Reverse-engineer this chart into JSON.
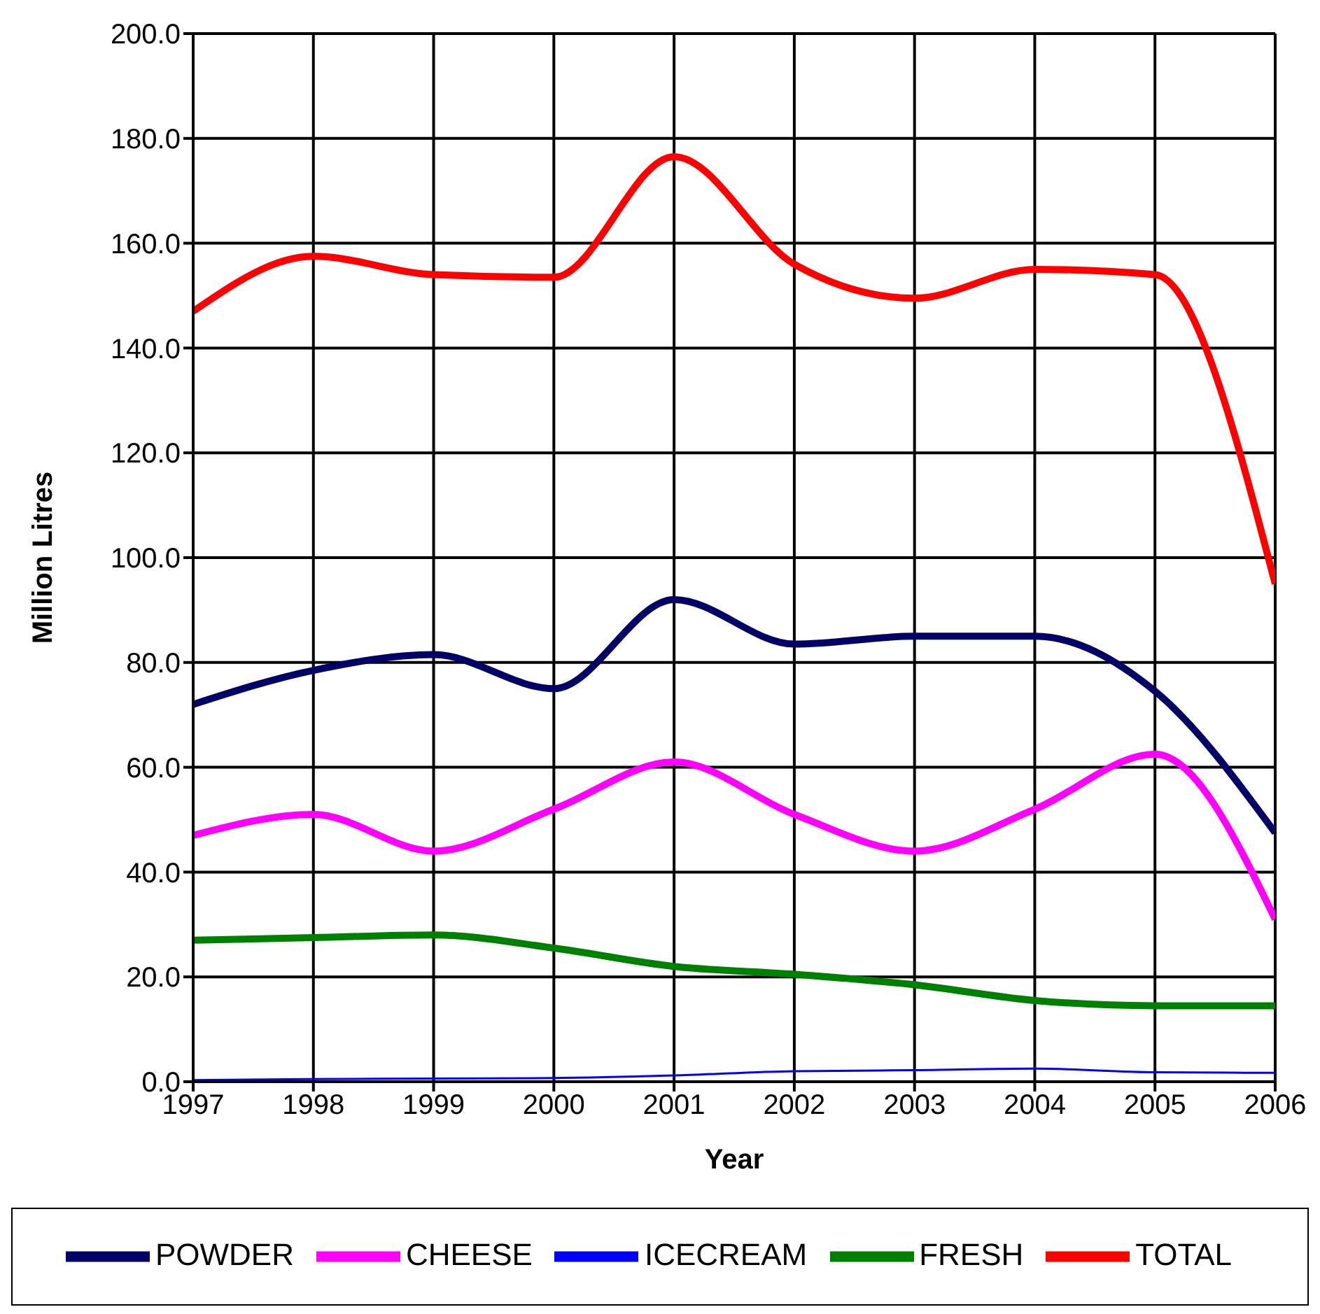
{
  "chart_data": {
    "type": "line",
    "xlabel": "Year",
    "ylabel": "Million Litres",
    "categories": [
      "1997",
      "1998",
      "1999",
      "2000",
      "2001",
      "2002",
      "2003",
      "2004",
      "2005",
      "2006"
    ],
    "series": [
      {
        "name": "POWDER",
        "color": "#000066",
        "values": [
          72,
          78.5,
          81.5,
          75,
          92,
          83.5,
          85,
          85,
          74.5,
          47.5
        ]
      },
      {
        "name": "CHEESE",
        "color": "#ff00ff",
        "values": [
          47,
          51,
          44,
          52,
          61,
          51,
          44,
          52,
          62.5,
          31
        ]
      },
      {
        "name": "ICECREAM",
        "color": "#0000ff",
        "values": [
          0.3,
          0.5,
          0.6,
          0.7,
          1.2,
          2,
          2.2,
          2.5,
          1.8,
          1.7
        ]
      },
      {
        "name": "FRESH",
        "color": "#008000",
        "values": [
          27,
          27.5,
          28,
          25.5,
          22,
          20.5,
          18.5,
          15.5,
          14.5,
          14.5
        ]
      },
      {
        "name": "TOTAL",
        "color": "#ff0000",
        "values": [
          147,
          157.5,
          154,
          153.5,
          176.5,
          156,
          149.5,
          155,
          154,
          95
        ]
      }
    ],
    "ylim": [
      0,
      200
    ],
    "yticks": [
      {
        "value": 0,
        "label": "0.0"
      },
      {
        "value": 20,
        "label": "20.0"
      },
      {
        "value": 40,
        "label": "40.0"
      },
      {
        "value": 60,
        "label": "60.0"
      },
      {
        "value": 80,
        "label": "80.0"
      },
      {
        "value": 100,
        "label": "100.0"
      },
      {
        "value": 120,
        "label": "120.0"
      },
      {
        "value": 140,
        "label": "140.0"
      },
      {
        "value": 160,
        "label": "160.0"
      },
      {
        "value": 180,
        "label": "180.0"
      },
      {
        "value": 200,
        "label": "200.0"
      }
    ],
    "grid": true,
    "legend": "bottom",
    "marker": "none",
    "line_style": "solid"
  }
}
